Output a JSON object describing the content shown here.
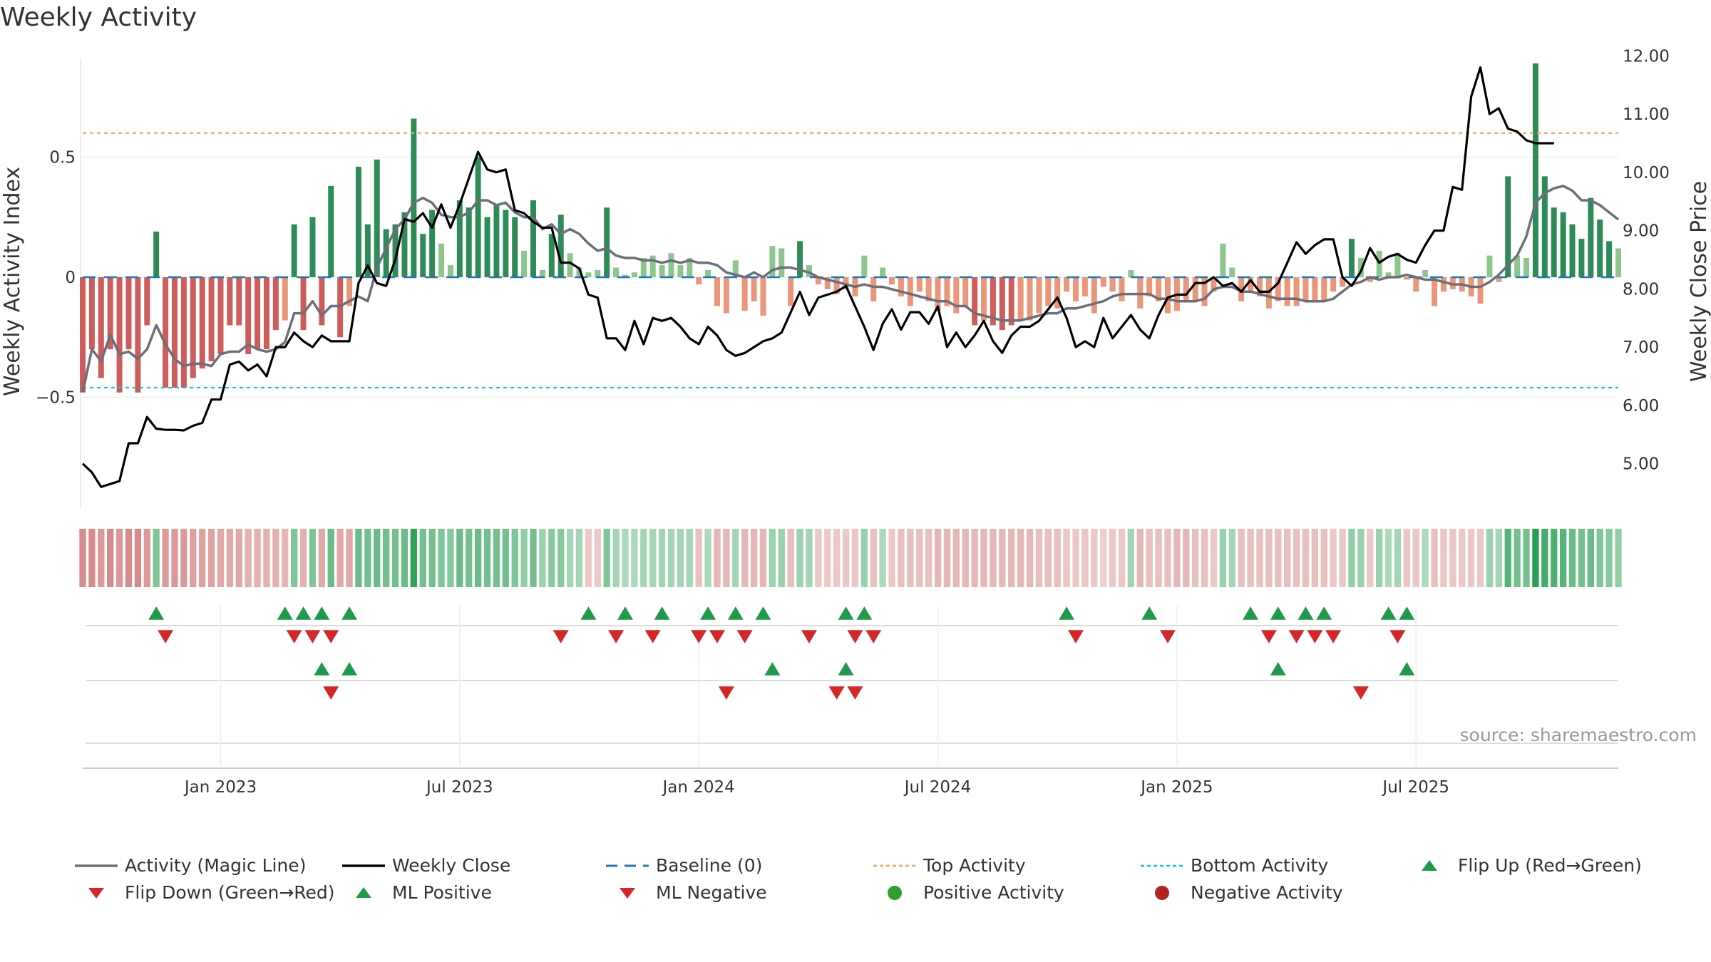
{
  "title": "Weekly Activity",
  "source": "source: sharemaestro.com",
  "chart_data": {
    "type": "bar",
    "title": "Weekly Activity",
    "ylabel": "Weekly Activity Index",
    "y2label": "Weekly Close Price",
    "ylim": [
      -0.97,
      0.97
    ],
    "y2lim": [
      4.2,
      12.2
    ],
    "yticks": [
      {
        "v": 0.5,
        "label": "0.5"
      },
      {
        "v": 0,
        "label": "0"
      },
      {
        "v": -0.5,
        "label": "−0.5"
      }
    ],
    "y2ticks": [
      {
        "v": 12,
        "label": "12.00"
      },
      {
        "v": 11,
        "label": "11.00"
      },
      {
        "v": 10,
        "label": "10.00"
      },
      {
        "v": 9,
        "label": "9.00"
      },
      {
        "v": 8,
        "label": "8.00"
      },
      {
        "v": 7,
        "label": "7.00"
      },
      {
        "v": 6,
        "label": "6.00"
      },
      {
        "v": 5,
        "label": "5.00"
      }
    ],
    "xticks": [
      {
        "week": 15,
        "label": "Jan 2023"
      },
      {
        "week": 41,
        "label": "Jul 2023"
      },
      {
        "week": 67,
        "label": "Jan 2024"
      },
      {
        "week": 93,
        "label": "Jul 2024"
      },
      {
        "week": 119,
        "label": "Jan 2025"
      },
      {
        "week": 145,
        "label": "Jul 2025"
      }
    ],
    "top_activity": 0.6,
    "bottom_activity": -0.46,
    "baseline": 0,
    "colors": {
      "close": "#000000",
      "magic_line": "#6e6e78",
      "baseline": "#1f77b4",
      "top": "#f4a460",
      "bottom": "#00ced1",
      "pos_strong": "#2e8b57",
      "pos_light": "#8cc68c",
      "neg_strong": "#cd5c5c",
      "neg_light": "#e9967a",
      "flip_up": "#2ca02c",
      "flip_down": "#d62728"
    },
    "activity": [
      -0.48,
      -0.3,
      -0.42,
      -0.3,
      -0.48,
      -0.3,
      -0.48,
      -0.2,
      0.19,
      -0.46,
      -0.46,
      -0.46,
      -0.42,
      -0.38,
      -0.35,
      -0.32,
      -0.2,
      -0.2,
      -0.32,
      -0.3,
      -0.3,
      -0.22,
      -0.18,
      0.22,
      -0.22,
      0.25,
      -0.2,
      0.38,
      -0.25,
      -0.12,
      0.46,
      0.22,
      0.49,
      0.2,
      0.22,
      0.27,
      0.66,
      0.18,
      0.28,
      0.14,
      0.05,
      0.32,
      0.29,
      0.5,
      0.25,
      0.3,
      0.28,
      0.25,
      0.11,
      0.32,
      0.03,
      0.18,
      0.26,
      0.1,
      0.04,
      0.02,
      0.03,
      0.29,
      0.04,
      0.01,
      0.02,
      0.08,
      0.09,
      0.05,
      0.1,
      0.05,
      0.08,
      -0.03,
      0.03,
      -0.12,
      -0.15,
      0.07,
      -0.14,
      -0.1,
      -0.16,
      0.13,
      0.12,
      -0.12,
      0.15,
      0.05,
      -0.03,
      -0.05,
      -0.07,
      -0.05,
      -0.08,
      0.09,
      -0.1,
      0.04,
      -0.03,
      -0.08,
      -0.12,
      -0.06,
      -0.1,
      -0.14,
      -0.12,
      -0.15,
      -0.12,
      -0.2,
      -0.18,
      -0.2,
      -0.22,
      -0.2,
      -0.18,
      -0.18,
      -0.15,
      -0.12,
      -0.13,
      -0.06,
      -0.1,
      -0.08,
      -0.15,
      -0.04,
      -0.06,
      -0.1,
      0.03,
      -0.13,
      -0.08,
      -0.1,
      -0.15,
      -0.14,
      -0.1,
      -0.1,
      -0.12,
      -0.06,
      0.14,
      0.04,
      -0.1,
      -0.06,
      -0.08,
      -0.13,
      -0.1,
      -0.12,
      -0.12,
      -0.1,
      -0.1,
      -0.1,
      -0.06,
      -0.04,
      0.16,
      0.08,
      -0.02,
      0.11,
      0.02,
      0.1,
      -0.01,
      -0.06,
      0.03,
      -0.12,
      -0.06,
      -0.05,
      -0.06,
      -0.08,
      -0.11,
      0.09,
      -0.02,
      0.42,
      0.09,
      0.08,
      0.89,
      0.42,
      0.29,
      0.27,
      0.22,
      0.16,
      0.33,
      0.24,
      0.15,
      0.12
    ],
    "magic_line": [
      -0.48,
      -0.3,
      -0.35,
      -0.24,
      -0.32,
      -0.31,
      -0.34,
      -0.3,
      -0.2,
      -0.28,
      -0.34,
      -0.37,
      -0.36,
      -0.36,
      -0.37,
      -0.32,
      -0.31,
      -0.31,
      -0.28,
      -0.3,
      -0.31,
      -0.3,
      -0.27,
      -0.15,
      -0.15,
      -0.1,
      -0.16,
      -0.12,
      -0.12,
      -0.1,
      -0.08,
      -0.1,
      0.04,
      0.12,
      0.2,
      0.24,
      0.31,
      0.33,
      0.31,
      0.26,
      0.25,
      0.25,
      0.27,
      0.32,
      0.32,
      0.3,
      0.31,
      0.27,
      0.25,
      0.25,
      0.2,
      0.22,
      0.18,
      0.2,
      0.18,
      0.14,
      0.11,
      0.12,
      0.09,
      0.08,
      0.08,
      0.07,
      0.07,
      0.06,
      0.07,
      0.06,
      0.07,
      0.06,
      0.06,
      0.05,
      0.02,
      0.01,
      0.0,
      0.02,
      0.0,
      0.03,
      0.04,
      0.04,
      0.03,
      0.02,
      0.0,
      -0.01,
      -0.02,
      -0.03,
      -0.04,
      -0.03,
      -0.04,
      -0.04,
      -0.05,
      -0.06,
      -0.07,
      -0.08,
      -0.09,
      -0.1,
      -0.1,
      -0.12,
      -0.12,
      -0.15,
      -0.16,
      -0.17,
      -0.18,
      -0.18,
      -0.18,
      -0.17,
      -0.16,
      -0.15,
      -0.15,
      -0.13,
      -0.13,
      -0.12,
      -0.11,
      -0.1,
      -0.08,
      -0.07,
      -0.07,
      -0.07,
      -0.07,
      -0.09,
      -0.09,
      -0.1,
      -0.1,
      -0.1,
      -0.09,
      -0.05,
      -0.04,
      -0.04,
      -0.06,
      -0.06,
      -0.07,
      -0.08,
      -0.09,
      -0.09,
      -0.09,
      -0.1,
      -0.1,
      -0.1,
      -0.09,
      -0.06,
      -0.03,
      -0.02,
      0.0,
      -0.01,
      0.0,
      0.0,
      0.01,
      0.0,
      -0.01,
      -0.01,
      -0.02,
      -0.03,
      -0.03,
      -0.04,
      -0.04,
      -0.02,
      0.01,
      0.05,
      0.09,
      0.17,
      0.31,
      0.35,
      0.37,
      0.38,
      0.36,
      0.32,
      0.32,
      0.3,
      0.27,
      0.24
    ],
    "close": [
      5.0,
      4.85,
      4.6,
      4.65,
      4.7,
      5.35,
      5.35,
      5.8,
      5.6,
      5.58,
      5.58,
      5.57,
      5.65,
      5.7,
      6.1,
      6.1,
      6.7,
      6.75,
      6.6,
      6.7,
      6.5,
      7.0,
      7.0,
      7.25,
      7.1,
      7.0,
      7.2,
      7.1,
      7.1,
      7.1,
      8.1,
      8.4,
      8.1,
      8.05,
      8.5,
      9.2,
      9.15,
      9.3,
      9.05,
      9.45,
      9.05,
      9.45,
      9.9,
      10.35,
      10.05,
      10.0,
      10.05,
      9.35,
      9.3,
      9.15,
      9.05,
      9.05,
      8.45,
      8.45,
      8.35,
      7.9,
      7.85,
      7.15,
      7.15,
      6.95,
      7.45,
      7.05,
      7.5,
      7.45,
      7.5,
      7.35,
      7.15,
      7.05,
      7.35,
      7.2,
      6.95,
      6.85,
      6.9,
      7.0,
      7.1,
      7.15,
      7.25,
      7.6,
      7.95,
      7.55,
      7.85,
      7.9,
      7.95,
      8.05,
      7.7,
      7.35,
      6.95,
      7.4,
      7.65,
      7.3,
      7.6,
      7.6,
      7.4,
      7.7,
      7.0,
      7.25,
      7.0,
      7.2,
      7.45,
      7.1,
      6.9,
      7.2,
      7.35,
      7.35,
      7.45,
      7.65,
      7.85,
      7.5,
      7.0,
      7.1,
      7.0,
      7.5,
      7.15,
      7.35,
      7.55,
      7.3,
      7.15,
      7.55,
      7.85,
      7.9,
      7.9,
      8.1,
      8.1,
      8.2,
      8.05,
      8.1,
      7.95,
      8.15,
      7.95,
      7.95,
      8.1,
      8.45,
      8.8,
      8.6,
      8.75,
      8.85,
      8.85,
      8.2,
      8.05,
      8.3,
      8.7,
      8.45,
      8.55,
      8.6,
      8.5,
      8.45,
      8.75,
      9.0,
      9.0,
      9.75,
      9.7,
      11.3,
      11.8,
      11.0,
      11.1,
      10.75,
      10.7,
      10.55,
      10.5,
      10.5,
      10.5
    ],
    "strip_intensity": [
      -0.6,
      -0.6,
      -0.5,
      -0.6,
      -0.5,
      -0.6,
      -0.6,
      -0.5,
      0.5,
      -0.5,
      -0.5,
      -0.5,
      -0.45,
      -0.45,
      -0.45,
      -0.4,
      -0.4,
      -0.4,
      -0.35,
      -0.35,
      -0.35,
      -0.35,
      -0.3,
      0.5,
      -0.35,
      0.5,
      -0.4,
      0.6,
      -0.4,
      -0.4,
      0.6,
      0.55,
      0.6,
      0.55,
      0.55,
      0.6,
      0.9,
      0.55,
      0.55,
      0.5,
      0.45,
      0.6,
      0.55,
      0.6,
      0.55,
      0.55,
      0.55,
      0.5,
      0.4,
      0.55,
      0.35,
      0.45,
      0.45,
      0.3,
      0.3,
      -0.2,
      -0.2,
      0.5,
      0.3,
      0.25,
      0.25,
      0.3,
      0.3,
      0.3,
      0.3,
      0.3,
      0.3,
      -0.25,
      0.25,
      -0.3,
      -0.3,
      0.3,
      -0.3,
      -0.3,
      -0.3,
      0.35,
      0.35,
      -0.25,
      0.35,
      0.3,
      -0.2,
      -0.2,
      -0.2,
      -0.2,
      -0.2,
      0.35,
      -0.25,
      0.25,
      -0.2,
      -0.25,
      -0.25,
      -0.25,
      -0.25,
      -0.3,
      -0.3,
      -0.3,
      -0.3,
      -0.3,
      -0.3,
      -0.3,
      -0.3,
      -0.3,
      -0.3,
      -0.3,
      -0.25,
      -0.25,
      -0.25,
      -0.2,
      -0.2,
      -0.2,
      -0.2,
      -0.15,
      -0.2,
      -0.2,
      0.3,
      -0.3,
      -0.25,
      -0.25,
      -0.25,
      -0.3,
      -0.3,
      -0.25,
      -0.25,
      -0.2,
      0.35,
      0.3,
      -0.25,
      -0.25,
      -0.25,
      -0.25,
      -0.25,
      -0.25,
      -0.25,
      -0.25,
      -0.25,
      -0.25,
      -0.2,
      -0.2,
      0.4,
      0.35,
      -0.2,
      0.35,
      0.25,
      0.3,
      -0.2,
      -0.2,
      0.25,
      -0.25,
      -0.2,
      -0.2,
      -0.2,
      -0.2,
      -0.2,
      0.35,
      0.3,
      0.7,
      0.55,
      0.55,
      0.95,
      0.8,
      0.75,
      0.7,
      0.6,
      0.55,
      0.6,
      0.5,
      0.45,
      0.4
    ],
    "flip_up_rows": {
      "row1": [
        8,
        22,
        24,
        26,
        29,
        55,
        59,
        63,
        68,
        71,
        74,
        83,
        85,
        107,
        116,
        127,
        130,
        133,
        135,
        142,
        144
      ],
      "row2": [
        26,
        29,
        75,
        83,
        130,
        144
      ]
    },
    "flip_down_rows": {
      "row1": [
        9,
        23,
        25,
        27,
        52,
        58,
        62,
        67,
        69,
        72,
        79,
        84,
        86,
        108,
        118,
        129,
        132,
        134,
        136,
        143
      ],
      "row2": [
        27,
        70,
        82,
        84,
        139
      ]
    }
  },
  "legend": [
    {
      "label": "Activity (Magic Line)",
      "symbol": "line-gray"
    },
    {
      "label": "Weekly Close",
      "symbol": "line-black"
    },
    {
      "label": "Baseline (0)",
      "symbol": "dash-blue"
    },
    {
      "label": "Top Activity",
      "symbol": "dot-orange"
    },
    {
      "label": "Bottom Activity",
      "symbol": "dot-cyan"
    },
    {
      "label": "Flip Up (Red→Green)",
      "symbol": "tri-up-green"
    },
    {
      "label": "Flip Down (Green→Red)",
      "symbol": "tri-down-red"
    },
    {
      "label": "ML Positive",
      "symbol": "tri-up-green"
    },
    {
      "label": "ML Negative",
      "symbol": "tri-down-red"
    },
    {
      "label": "Positive Activity",
      "symbol": "circle-green"
    },
    {
      "label": "Negative Activity",
      "symbol": "circle-red"
    }
  ]
}
